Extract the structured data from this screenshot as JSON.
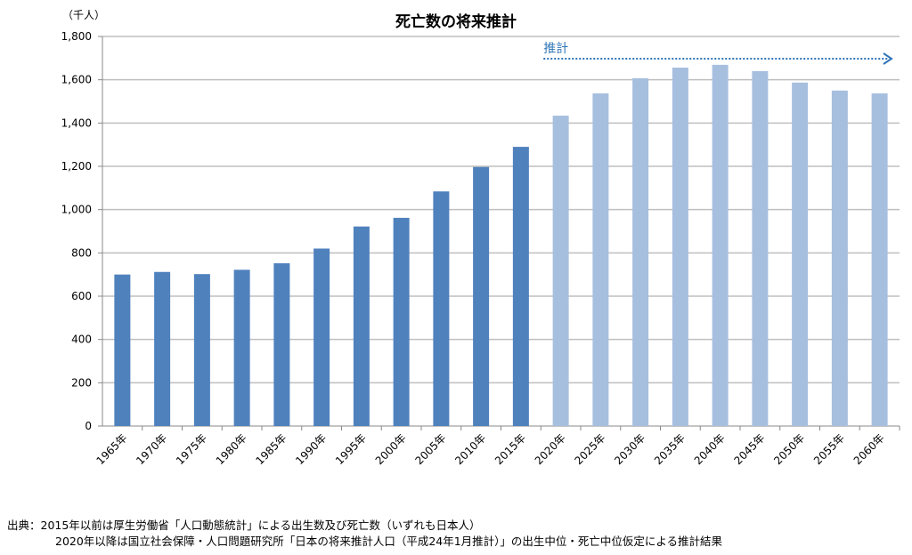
{
  "chart_data": {
    "type": "bar",
    "title": "死亡数の将来推計",
    "ylabel": "（千人）",
    "xlabel": "",
    "ylim": [
      0,
      1800
    ],
    "yticks": [
      "0",
      "200",
      "400",
      "600",
      "800",
      "1,000",
      "1,200",
      "1,400",
      "1,600",
      "1,800"
    ],
    "grid": true,
    "categories": [
      "1965年",
      "1970年",
      "1975年",
      "1980年",
      "1985年",
      "1990年",
      "1995年",
      "2000年",
      "2005年",
      "2010年",
      "2015年",
      "2020年",
      "2025年",
      "2030年",
      "2035年",
      "2040年",
      "2045年",
      "2050年",
      "2055年",
      "2060年"
    ],
    "values": [
      700,
      712,
      702,
      722,
      752,
      820,
      922,
      962,
      1084,
      1197,
      1290,
      1434,
      1537,
      1607,
      1656,
      1669,
      1640,
      1587,
      1550,
      1537
    ],
    "series_kind": [
      "actual",
      "actual",
      "actual",
      "actual",
      "actual",
      "actual",
      "actual",
      "actual",
      "actual",
      "actual",
      "actual",
      "projection",
      "projection",
      "projection",
      "projection",
      "projection",
      "projection",
      "projection",
      "projection",
      "projection"
    ],
    "annotation": "推計",
    "colors": {
      "actual": "#4f81bd",
      "projection": "#a7bfdf",
      "annotation": "#2e75b6",
      "grid": "#bfbfbf"
    }
  },
  "source": {
    "line1": "出典：2015年以前は厚生労働省「人口動態統計」による出生数及び死亡数（いずれも日本人）",
    "line2": "2020年以降は国立社会保障・人口問題研究所「日本の将来推計人口（平成24年1月推計）」の出生中位・死亡中位仮定による推計結果"
  }
}
